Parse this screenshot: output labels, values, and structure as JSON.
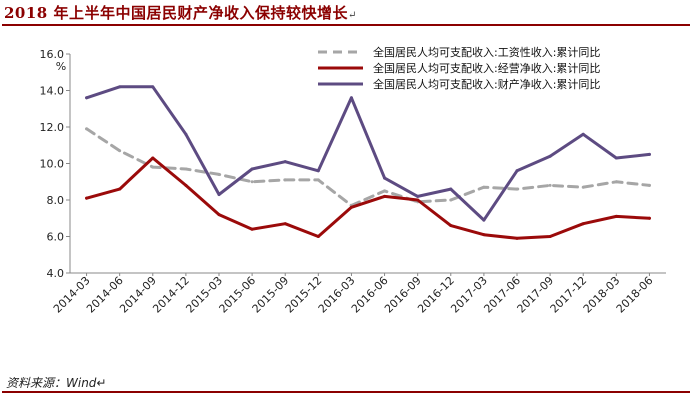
{
  "header": {
    "title": "2018 年上半年中国居民财产净收入保持较快增长",
    "return_mark": "↵"
  },
  "footer": {
    "source": "资料来源：Wind↵"
  },
  "chart_data": {
    "type": "line",
    "title": "2018 年上半年中国居民财产净收入保持较快增长",
    "xlabel": "",
    "ylabel": "%",
    "ylim": [
      4.0,
      16.0
    ],
    "yticks": [
      "4.0",
      "6.0",
      "8.0",
      "10.0",
      "12.0",
      "14.0",
      "16.0"
    ],
    "grid": false,
    "legend_position": "top-right",
    "categories": [
      "2014-03",
      "2014-06",
      "2014-09",
      "2014-12",
      "2015-03",
      "2015-06",
      "2015-09",
      "2015-12",
      "2016-03",
      "2016-06",
      "2016-09",
      "2016-12",
      "2017-03",
      "2017-06",
      "2017-09",
      "2017-12",
      "2018-03",
      "2018-06"
    ],
    "series": [
      {
        "name": "全国居民人均可支配收入:工资性收入:累计同比",
        "color": "#a6a6a6",
        "dash": true,
        "values": [
          11.9,
          10.7,
          9.8,
          9.7,
          9.4,
          9.0,
          9.1,
          9.1,
          7.7,
          8.5,
          7.9,
          8.0,
          8.7,
          8.6,
          8.8,
          8.7,
          9.0,
          8.8
        ]
      },
      {
        "name": "全国居民人均可支配收入:经营净收入:累计同比",
        "color": "#9b0a0a",
        "dash": false,
        "values": [
          8.1,
          8.6,
          10.3,
          8.8,
          7.2,
          6.4,
          6.7,
          6.0,
          7.6,
          8.2,
          8.0,
          6.6,
          6.1,
          5.9,
          6.0,
          6.7,
          7.1,
          7.0
        ]
      },
      {
        "name": "全国居民人均可支配收入:财产净收入:累计同比",
        "color": "#5d4b82",
        "dash": false,
        "values": [
          13.6,
          14.2,
          14.2,
          11.6,
          8.3,
          9.7,
          10.1,
          9.6,
          13.6,
          9.2,
          8.2,
          8.6,
          6.9,
          9.6,
          10.4,
          11.6,
          10.3,
          10.5
        ]
      }
    ]
  }
}
